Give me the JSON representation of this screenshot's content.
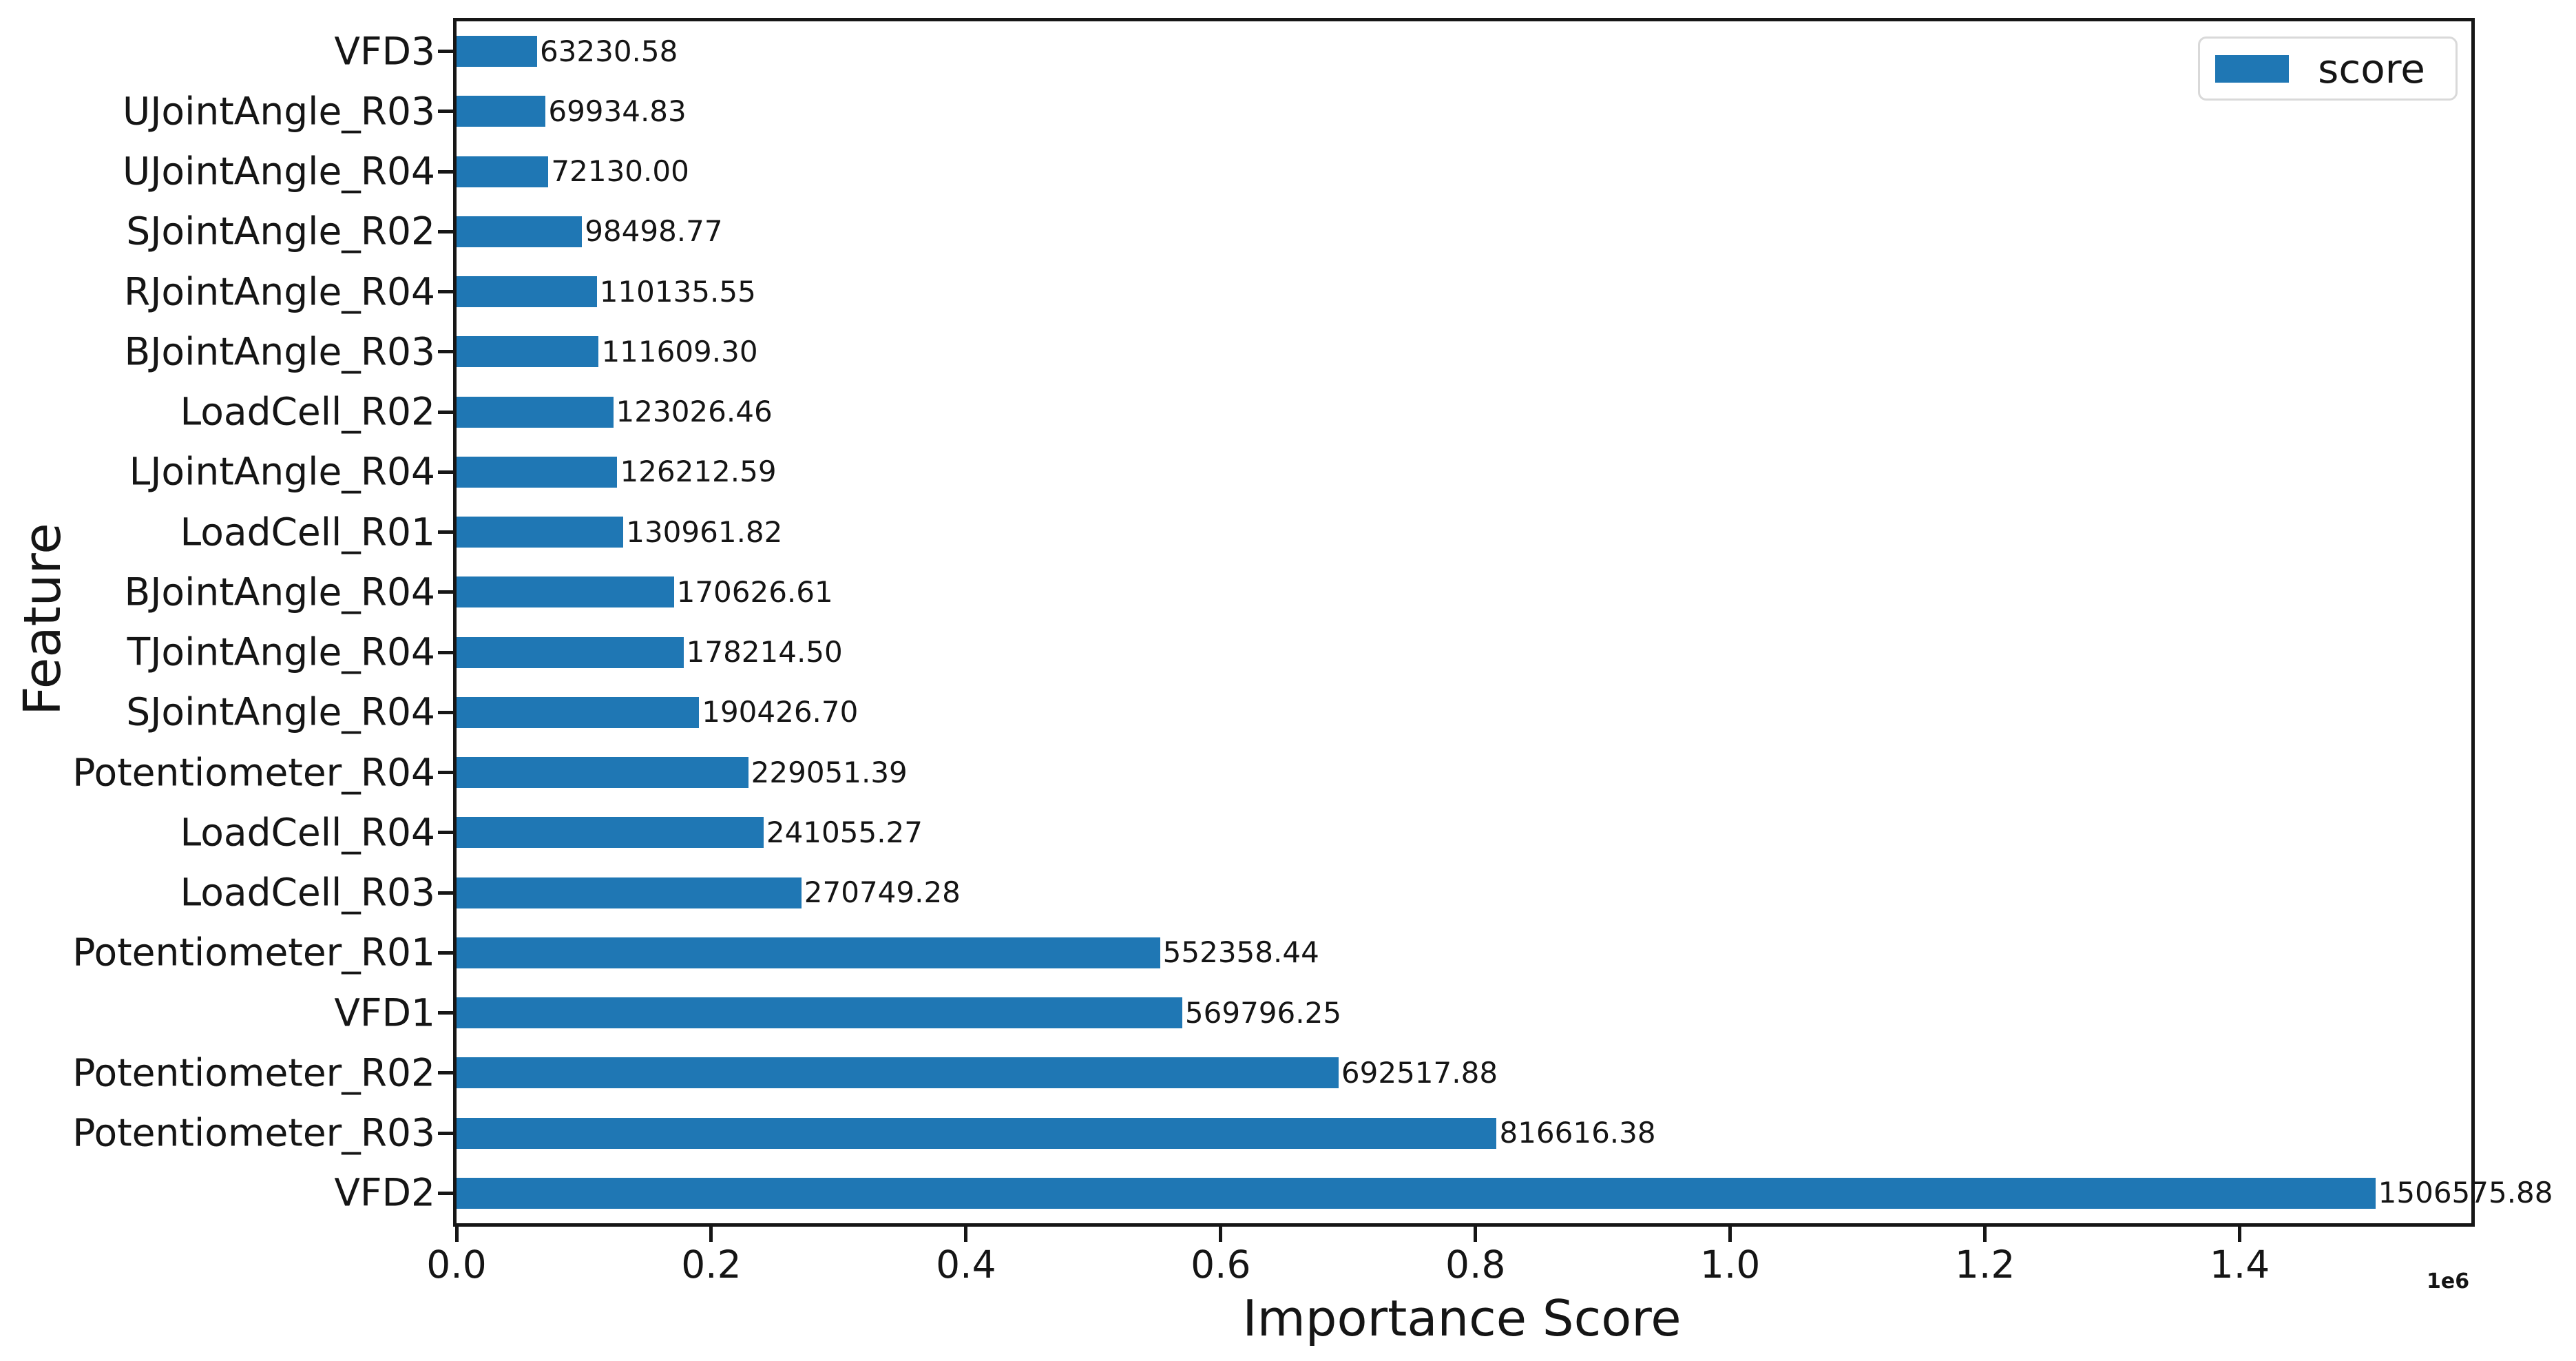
{
  "chart_data": {
    "type": "bar",
    "orientation": "horizontal",
    "title": "",
    "xlabel": "Importance Score",
    "ylabel": "Feature",
    "x_offset_label": "1e6",
    "bar_color": "#1f77b4",
    "axis_color": "#161616",
    "grid": false,
    "xlim": [
      0,
      1581905
    ],
    "x_tick_labels": [
      "0.0",
      "0.2",
      "0.4",
      "0.6",
      "0.8",
      "1.0",
      "1.2",
      "1.4"
    ],
    "x_tick_values": [
      0,
      200000,
      400000,
      600000,
      800000,
      1000000,
      1200000,
      1400000
    ],
    "legend": {
      "position": "upper-right",
      "entries": [
        {
          "label": "score",
          "color": "#1f77b4"
        }
      ]
    },
    "features": [
      {
        "label": "VFD3",
        "value": 63230.58,
        "value_label": "63230.58"
      },
      {
        "label": "UJointAngle_R03",
        "value": 69934.83,
        "value_label": "69934.83"
      },
      {
        "label": "UJointAngle_R04",
        "value": 72130.0,
        "value_label": "72130.00"
      },
      {
        "label": "SJointAngle_R02",
        "value": 98498.77,
        "value_label": "98498.77"
      },
      {
        "label": "RJointAngle_R04",
        "value": 110135.55,
        "value_label": "110135.55"
      },
      {
        "label": "BJointAngle_R03",
        "value": 111609.3,
        "value_label": "111609.30"
      },
      {
        "label": "LoadCell_R02",
        "value": 123026.46,
        "value_label": "123026.46"
      },
      {
        "label": "LJointAngle_R04",
        "value": 126212.59,
        "value_label": "126212.59"
      },
      {
        "label": "LoadCell_R01",
        "value": 130961.82,
        "value_label": "130961.82"
      },
      {
        "label": "BJointAngle_R04",
        "value": 170626.61,
        "value_label": "170626.61"
      },
      {
        "label": "TJointAngle_R04",
        "value": 178214.5,
        "value_label": "178214.50"
      },
      {
        "label": "SJointAngle_R04",
        "value": 190426.7,
        "value_label": "190426.70"
      },
      {
        "label": "Potentiometer_R04",
        "value": 229051.39,
        "value_label": "229051.39"
      },
      {
        "label": "LoadCell_R04",
        "value": 241055.27,
        "value_label": "241055.27"
      },
      {
        "label": "LoadCell_R03",
        "value": 270749.28,
        "value_label": "270749.28"
      },
      {
        "label": "Potentiometer_R01",
        "value": 552358.44,
        "value_label": "552358.44"
      },
      {
        "label": "VFD1",
        "value": 569796.25,
        "value_label": "569796.25"
      },
      {
        "label": "Potentiometer_R02",
        "value": 692517.88,
        "value_label": "692517.88"
      },
      {
        "label": "Potentiometer_R03",
        "value": 816616.38,
        "value_label": "816616.38"
      },
      {
        "label": "VFD2",
        "value": 1506575.88,
        "value_label": "1506575.88"
      }
    ]
  }
}
